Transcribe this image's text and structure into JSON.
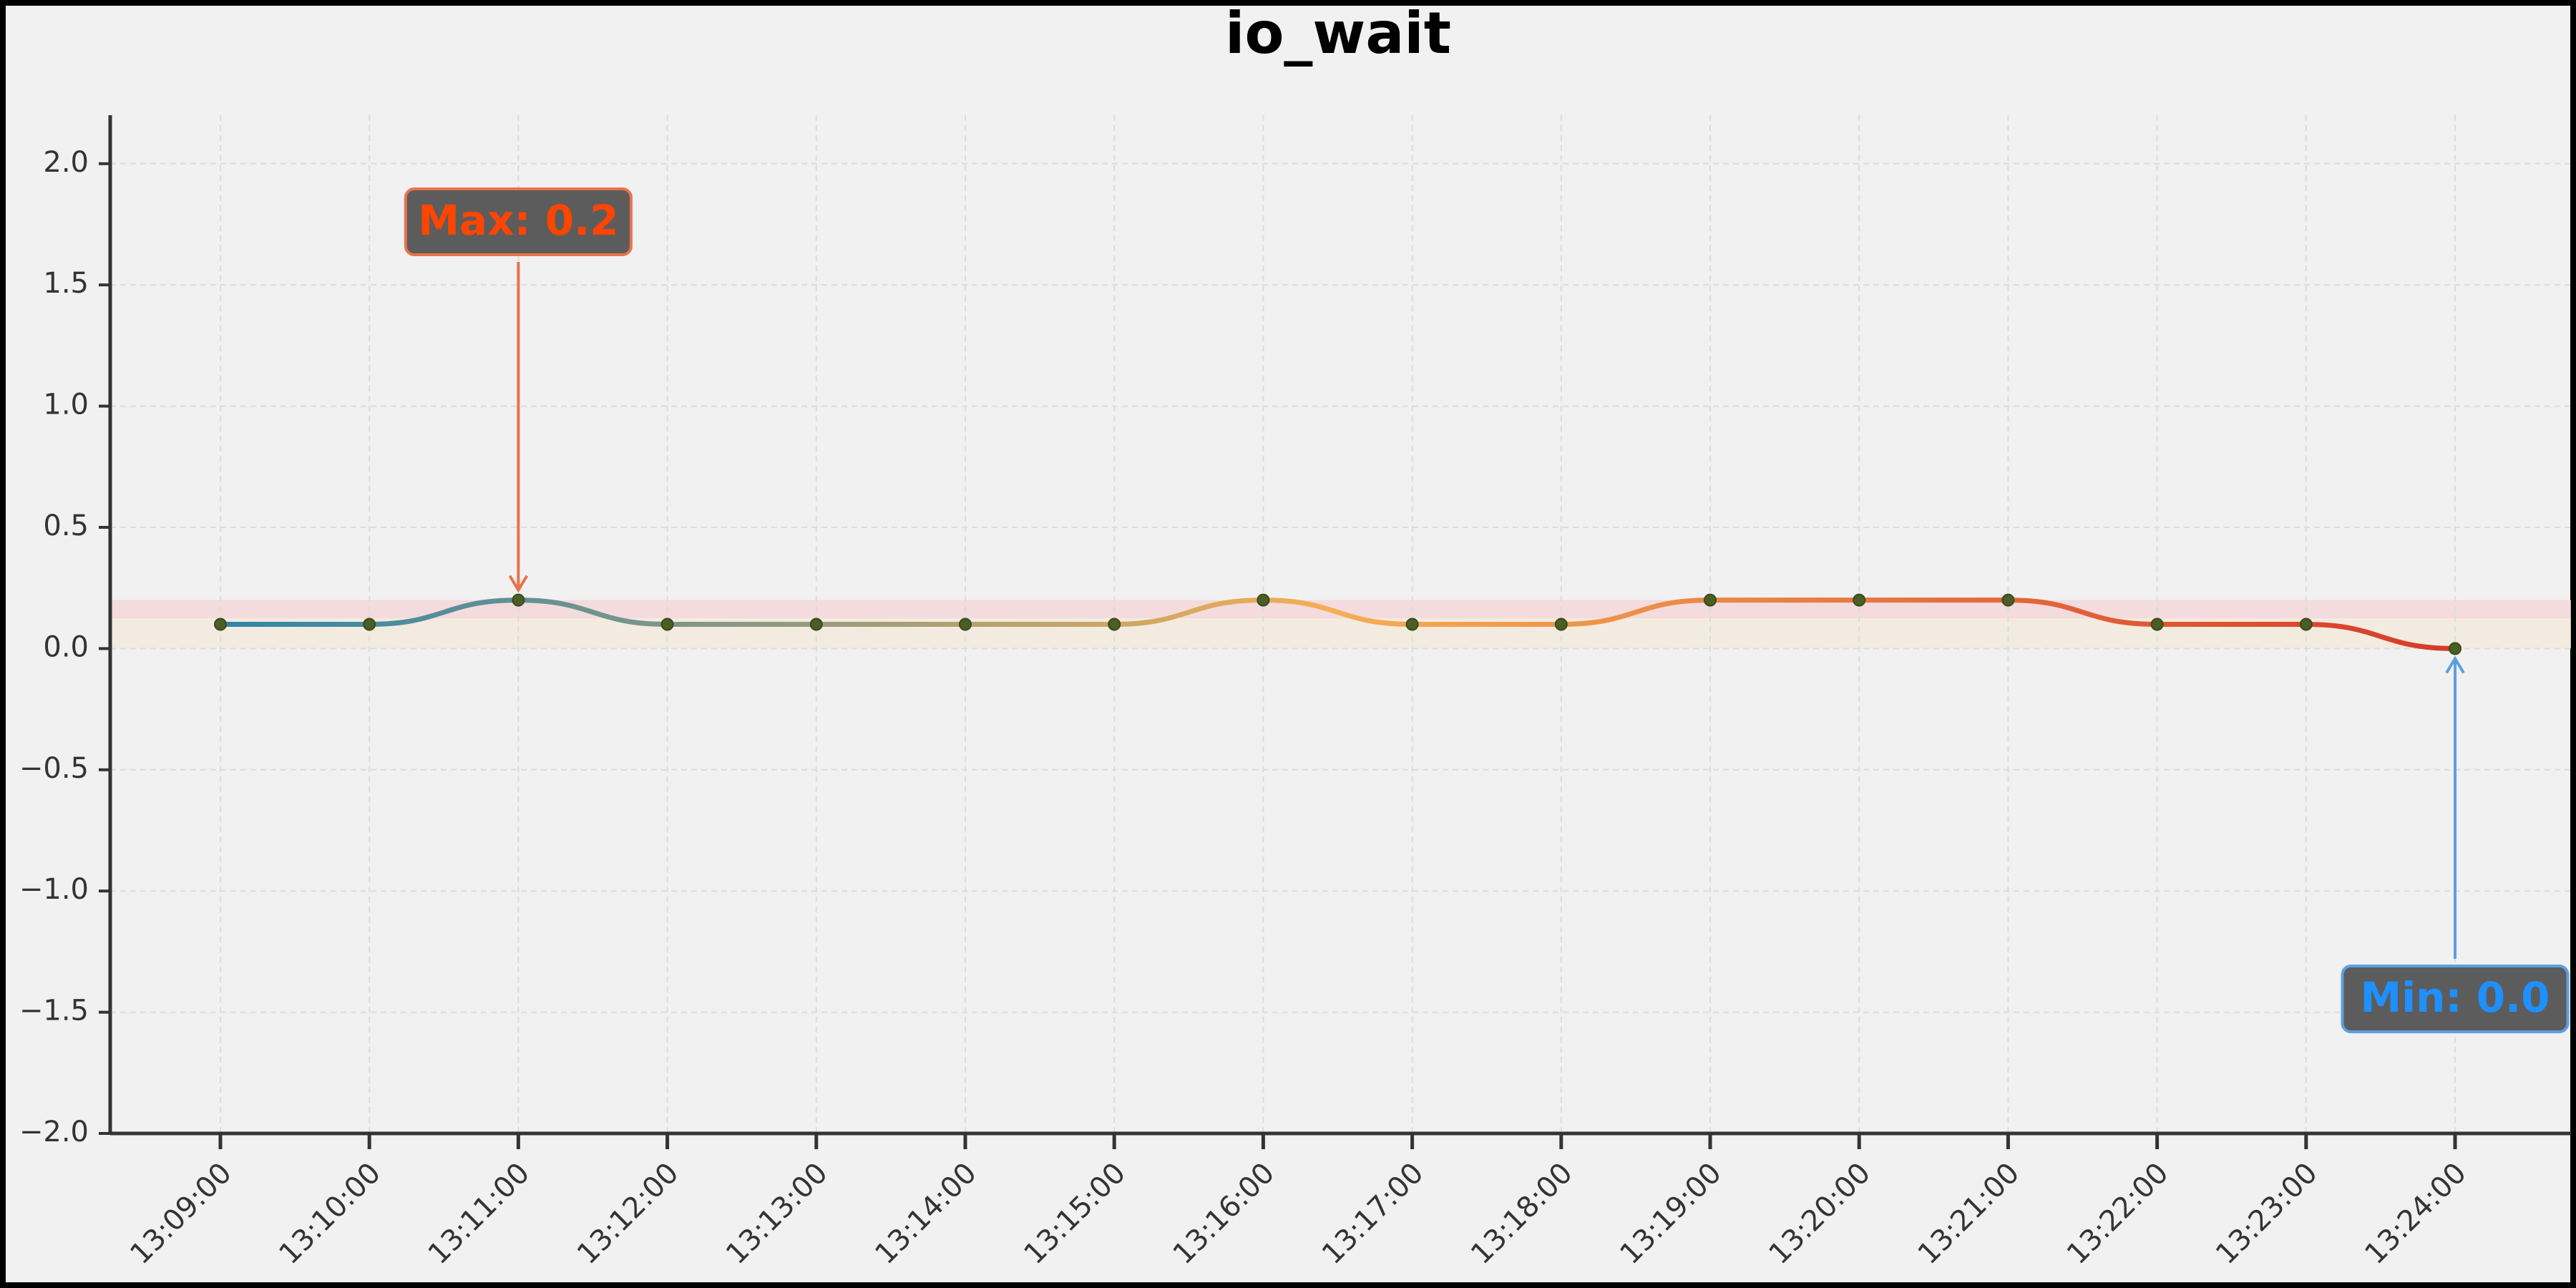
{
  "chart_data": {
    "type": "line",
    "title": "io_wait",
    "categories": [
      "13:09:00",
      "13:10:00",
      "13:11:00",
      "13:12:00",
      "13:13:00",
      "13:14:00",
      "13:15:00",
      "13:16:00",
      "13:17:00",
      "13:18:00",
      "13:19:00",
      "13:20:00",
      "13:21:00",
      "13:22:00",
      "13:23:00",
      "13:24:00"
    ],
    "values": [
      0.1,
      0.1,
      0.2,
      0.1,
      0.1,
      0.1,
      0.1,
      0.2,
      0.1,
      0.1,
      0.2,
      0.2,
      0.2,
      0.1,
      0.1,
      0.0
    ],
    "line_colors": [
      "#2e86ab",
      "#f5ae55",
      "#d63a2a"
    ],
    "marker_color": "#4b5e25",
    "ylim": [
      -2.0,
      2.2
    ],
    "yticks": [
      {
        "value": 2,
        "label": "2.0"
      },
      1.5,
      {
        "value": 1,
        "label": "1.0"
      },
      0.5,
      {
        "value": 0,
        "label": "0.0"
      },
      {
        "value": -0.5,
        "label": "−0.5"
      },
      {
        "value": -1,
        "label": "−1.0"
      },
      {
        "value": -1.5,
        "label": "−1.5"
      },
      {
        "value": -2,
        "label": "−2.0"
      }
    ],
    "grid": true,
    "bands": [
      {
        "from": 0.125,
        "to": 0.2,
        "color": "#f5d6d8"
      },
      {
        "from": 0,
        "to": 0.125,
        "color": "#f4eadb"
      }
    ],
    "annotations": [
      {
        "text": "Max: 0.2",
        "color": "#ff4500",
        "edge": "#e8734a"
      },
      {
        "text": "Min: 0.0",
        "color": "#1e90ff",
        "edge": "#5aa0e0"
      }
    ]
  }
}
